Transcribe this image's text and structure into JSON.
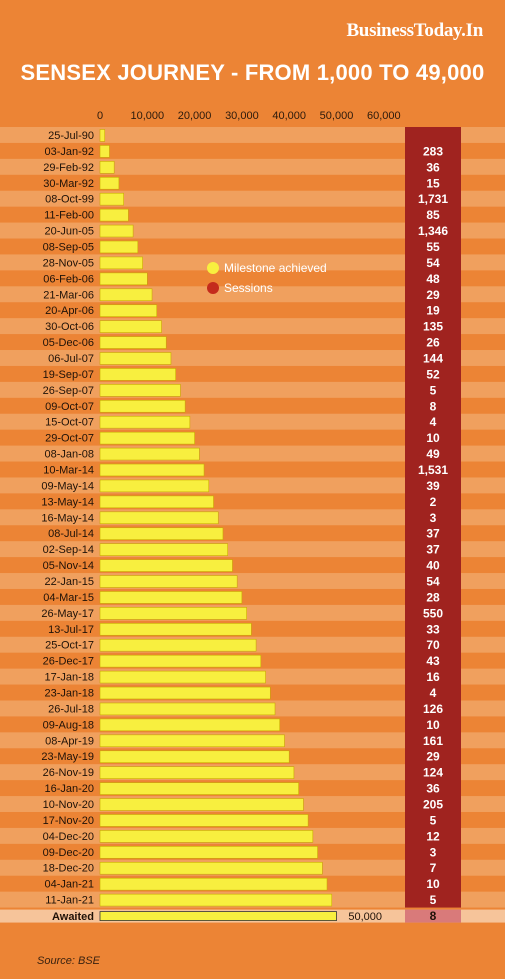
{
  "header": {
    "brand": "BusinessToday.In",
    "title": "SENSEX JOURNEY - FROM 1,000 TO 49,000"
  },
  "legend": {
    "milestone": "Milestone achieved",
    "sessions": "Sessions"
  },
  "footer": {
    "source": "Source: BSE"
  },
  "colors": {
    "background": "#ec8435",
    "row_stripe_light": "#f0a05e",
    "bar": "#f8ef3f",
    "bar_border": "#c9a700",
    "sessions_column": "#a0231f",
    "legend_sessions": "#c42b1c",
    "awaited_row": "#f6c49a"
  },
  "chart_data": {
    "type": "bar",
    "orientation": "horizontal",
    "xlim": [
      0,
      60000
    ],
    "x_ticks": [
      "0",
      "10,000",
      "20,000",
      "30,000",
      "40,000",
      "50,000",
      "60,000"
    ],
    "tick_values": [
      0,
      10000,
      20000,
      30000,
      40000,
      50000,
      60000
    ],
    "legend_placement": "inside-top",
    "categories": [
      "25-Jul-90",
      "03-Jan-92",
      "29-Feb-92",
      "30-Mar-92",
      "08-Oct-99",
      "11-Feb-00",
      "20-Jun-05",
      "08-Sep-05",
      "28-Nov-05",
      "06-Feb-06",
      "21-Mar-06",
      "20-Apr-06",
      "30-Oct-06",
      "05-Dec-06",
      "06-Jul-07",
      "19-Sep-07",
      "26-Sep-07",
      "09-Oct-07",
      "15-Oct-07",
      "29-Oct-07",
      "08-Jan-08",
      "10-Mar-14",
      "09-May-14",
      "13-May-14",
      "16-May-14",
      "08-Jul-14",
      "02-Sep-14",
      "05-Nov-14",
      "22-Jan-15",
      "04-Mar-15",
      "26-May-17",
      "13-Jul-17",
      "25-Oct-17",
      "26-Dec-17",
      "17-Jan-18",
      "23-Jan-18",
      "26-Jul-18",
      "09-Aug-18",
      "08-Apr-19",
      "23-May-19",
      "26-Nov-19",
      "16-Jan-20",
      "10-Nov-20",
      "17-Nov-20",
      "04-Dec-20",
      "09-Dec-20",
      "18-Dec-20",
      "04-Jan-21",
      "11-Jan-21"
    ],
    "values": [
      1000,
      2000,
      3000,
      4000,
      5000,
      6000,
      7000,
      8000,
      9000,
      10000,
      11000,
      12000,
      13000,
      14000,
      15000,
      16000,
      17000,
      18000,
      19000,
      20000,
      21000,
      22000,
      23000,
      24000,
      25000,
      26000,
      27000,
      28000,
      29000,
      30000,
      31000,
      32000,
      33000,
      34000,
      35000,
      36000,
      37000,
      38000,
      39000,
      40000,
      41000,
      42000,
      43000,
      44000,
      45000,
      46000,
      47000,
      48000,
      49000
    ],
    "sessions": [
      "",
      "283",
      "36",
      "15",
      "1,731",
      "85",
      "1,346",
      "55",
      "54",
      "48",
      "29",
      "19",
      "135",
      "26",
      "144",
      "52",
      "5",
      "8",
      "4",
      "10",
      "49",
      "1,531",
      "39",
      "2",
      "3",
      "37",
      "37",
      "40",
      "54",
      "28",
      "550",
      "33",
      "70",
      "43",
      "16",
      "4",
      "126",
      "10",
      "161",
      "29",
      "124",
      "36",
      "205",
      "5",
      "12",
      "3",
      "7",
      "10",
      "5"
    ],
    "awaited": {
      "label": "Awaited",
      "value": 50000,
      "value_label": "50,000",
      "sessions": "8"
    }
  }
}
